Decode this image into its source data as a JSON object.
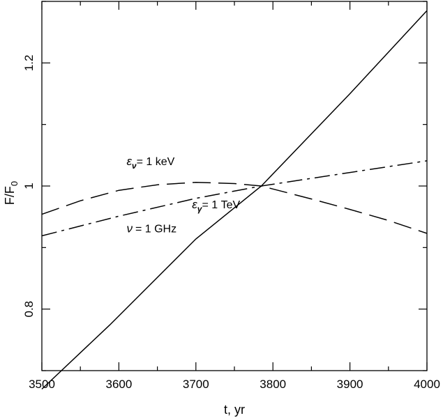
{
  "chart_data": {
    "type": "line",
    "xlabel": "t, yr",
    "ylabel": "F/F",
    "ylabel_sub": "0",
    "xlim": [
      3500,
      4000
    ],
    "ylim": [
      0.7,
      1.3
    ],
    "xticks": [
      3500,
      3600,
      3700,
      3800,
      3900,
      4000
    ],
    "xtick_labels": [
      "3500",
      "3600",
      "3700",
      "3800",
      "3900",
      "4000"
    ],
    "yticks": [
      0.8,
      1.0,
      1.2
    ],
    "ytick_labels": [
      "0.8",
      "1",
      "1.2"
    ],
    "grid": false,
    "series": [
      {
        "line_style": "solid",
        "annotation_symbol": "ε",
        "annotation_sub": "γ",
        "annotation_text": "= 1 TeV",
        "x": [
          3500,
          3588,
          3700,
          3785,
          3900,
          4000
        ],
        "y": [
          0.67,
          0.774,
          0.914,
          1.0,
          1.15,
          1.285
        ]
      },
      {
        "line_style": "dashed",
        "annotation_symbol": "ε",
        "annotation_sub": "ν",
        "annotation_text": "= 1 keV",
        "x": [
          3500,
          3550,
          3600,
          3650,
          3700,
          3750,
          3785,
          3850,
          3900,
          3950,
          4000
        ],
        "y": [
          0.954,
          0.976,
          0.993,
          1.002,
          1.006,
          1.004,
          1.0,
          0.979,
          0.962,
          0.944,
          0.923
        ]
      },
      {
        "line_style": "dash-dot",
        "annotation_symbol": "ν",
        "annotation_sub": "",
        "annotation_text": "= 1 GHz",
        "x": [
          3500,
          3600,
          3700,
          3785,
          3900,
          4000
        ],
        "y": [
          0.919,
          0.951,
          0.98,
          1.0,
          1.022,
          1.041
        ]
      }
    ]
  }
}
